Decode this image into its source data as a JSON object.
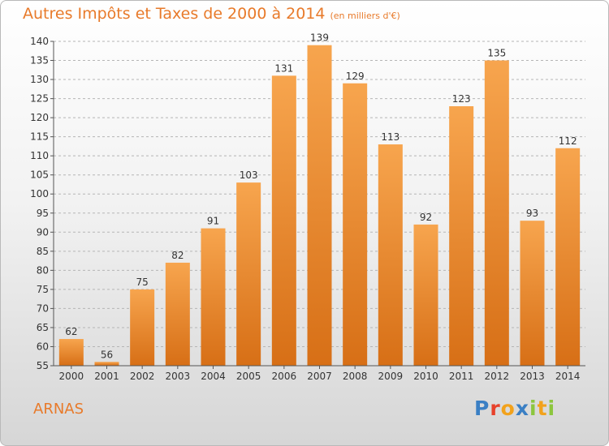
{
  "title": {
    "main": "Autres Impôts et Taxes de 2000 à 2014",
    "sub": "(en milliers d'€)"
  },
  "city": "ARNAS",
  "logo": {
    "text": "Proxiti",
    "letters": [
      {
        "ch": "P",
        "color": "#3a7fc4"
      },
      {
        "ch": "r",
        "color": "#e7412b"
      },
      {
        "ch": "o",
        "color": "#f2a21c"
      },
      {
        "ch": "x",
        "color": "#3a7fc4"
      },
      {
        "ch": "i",
        "color": "#8cc63e"
      },
      {
        "ch": "t",
        "color": "#f2a21c"
      },
      {
        "ch": "i",
        "color": "#8cc63e"
      }
    ]
  },
  "colors": {
    "accent": "#e87a2a",
    "bar_top": "#f7a54e",
    "bar_bottom": "#d76f16",
    "axis": "#555555",
    "grid": "#b5b5b5"
  },
  "chart_data": {
    "type": "bar",
    "categories": [
      "2000",
      "2001",
      "2002",
      "2003",
      "2004",
      "2005",
      "2006",
      "2007",
      "2008",
      "2009",
      "2010",
      "2011",
      "2012",
      "2013",
      "2014"
    ],
    "values": [
      62,
      56,
      75,
      82,
      91,
      103,
      131,
      139,
      129,
      113,
      92,
      123,
      135,
      93,
      112
    ],
    "ylim": [
      55,
      140
    ],
    "yticks": [
      55,
      60,
      65,
      70,
      75,
      80,
      85,
      90,
      95,
      100,
      105,
      110,
      115,
      120,
      125,
      130,
      135,
      140
    ],
    "grid": "horizontal dashed",
    "legend": "none",
    "data_labels": true
  }
}
